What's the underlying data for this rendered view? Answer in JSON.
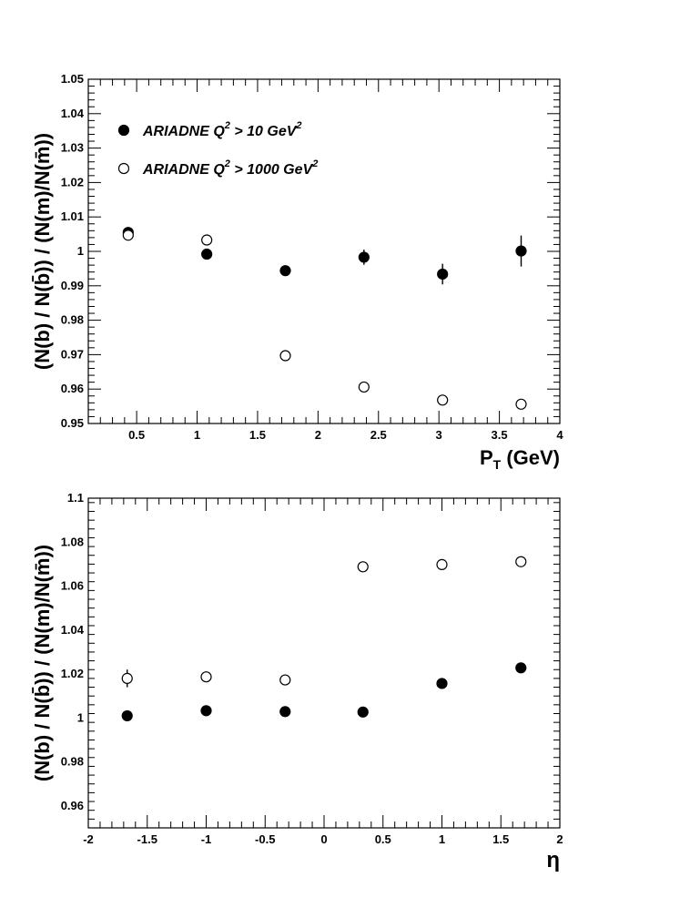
{
  "chart_data": [
    {
      "type": "scatter",
      "xlabel_main": "P",
      "xlabel_sub": "T",
      "xlabel_unit": " (GeV)",
      "ylabel": "(N(b) / N(b̄)) / (N(m)/N(m̄))",
      "xlim": [
        0.1,
        4
      ],
      "ylim": [
        0.95,
        1.05
      ],
      "xticks": [
        0.5,
        1,
        1.5,
        2,
        2.5,
        3,
        3.5,
        4
      ],
      "xtick_labels": [
        "0.5",
        "1",
        "1.5",
        "2",
        "2.5",
        "3",
        "3.5",
        "4"
      ],
      "yticks": [
        0.95,
        0.96,
        0.97,
        0.98,
        0.99,
        1,
        1.01,
        1.02,
        1.03,
        1.04,
        1.05
      ],
      "ytick_labels": [
        "0.95",
        "0.96",
        "0.97",
        "0.98",
        "0.99",
        "1",
        "1.01",
        "1.02",
        "1.03",
        "1.04",
        "1.05"
      ],
      "legend": {
        "placement": "top-left",
        "entries": [
          {
            "marker": "filled",
            "prefix": "ARIADNE Q",
            "sup1": "2",
            "middle": " > 10 GeV",
            "sup2": "2"
          },
          {
            "marker": "open",
            "prefix": "ARIADNE  Q",
            "sup1": "2",
            "middle": " > 1000 GeV",
            "sup2": "2"
          }
        ]
      },
      "series": [
        {
          "marker": "filled",
          "points": [
            {
              "x": 0.43,
              "y": 1.0055,
              "err": 0.001
            },
            {
              "x": 1.08,
              "y": 0.9992,
              "err": 0.0008
            },
            {
              "x": 1.73,
              "y": 0.9944,
              "err": 0.0008
            },
            {
              "x": 2.38,
              "y": 0.9983,
              "err": 0.0022
            },
            {
              "x": 3.03,
              "y": 0.9934,
              "err": 0.003
            },
            {
              "x": 3.68,
              "y": 1.0001,
              "err": 0.0045
            }
          ]
        },
        {
          "marker": "open",
          "points": [
            {
              "x": 0.43,
              "y": 1.0047,
              "err": 0.0008
            },
            {
              "x": 1.08,
              "y": 1.0033,
              "err": 0.0008
            },
            {
              "x": 1.73,
              "y": 0.9697,
              "err": 0.0008
            },
            {
              "x": 2.38,
              "y": 0.9606,
              "err": 0.0008
            },
            {
              "x": 3.03,
              "y": 0.9568,
              "err": 0.0008
            },
            {
              "x": 3.68,
              "y": 0.9556,
              "err": 0.0008
            }
          ]
        }
      ]
    },
    {
      "type": "scatter",
      "xlabel_main": "η",
      "xlabel_sub": "",
      "xlabel_unit": "",
      "ylabel": "(N(b) / N(b̄)) / (N(m)/N(m̄))",
      "xlim": [
        -2,
        2
      ],
      "ylim": [
        0.95,
        1.1
      ],
      "xticks": [
        -2,
        -1.5,
        -1,
        -0.5,
        0,
        0.5,
        1,
        1.5,
        2
      ],
      "xtick_labels": [
        "-2",
        "-1.5",
        "-1",
        "-0.5",
        "0",
        "0.5",
        "1",
        "1.5",
        "2"
      ],
      "yticks": [
        0.96,
        0.98,
        1,
        1.02,
        1.04,
        1.06,
        1.08,
        1.1
      ],
      "ytick_labels": [
        "0.96",
        "0.98",
        "1",
        "1.02",
        "1.04",
        "1.06",
        "1.08",
        "1.1"
      ],
      "series": [
        {
          "marker": "filled",
          "points": [
            {
              "x": -1.67,
              "y": 1.001,
              "err": 0.0015
            },
            {
              "x": -1.0,
              "y": 1.0033,
              "err": 0.0015
            },
            {
              "x": -0.33,
              "y": 1.0029,
              "err": 0.0015
            },
            {
              "x": 0.33,
              "y": 1.0027,
              "err": 0.0015
            },
            {
              "x": 1.0,
              "y": 1.0157,
              "err": 0.0015
            },
            {
              "x": 1.67,
              "y": 1.0228,
              "err": 0.0015
            }
          ]
        },
        {
          "marker": "open",
          "points": [
            {
              "x": -1.67,
              "y": 1.018,
              "err": 0.004
            },
            {
              "x": -1.0,
              "y": 1.0187,
              "err": 0.0015
            },
            {
              "x": -0.33,
              "y": 1.0173,
              "err": 0.0015
            },
            {
              "x": 0.33,
              "y": 1.0688,
              "err": 0.0015
            },
            {
              "x": 1.0,
              "y": 1.0698,
              "err": 0.0015
            },
            {
              "x": 1.67,
              "y": 1.0711,
              "err": 0.0015
            }
          ]
        }
      ]
    }
  ]
}
